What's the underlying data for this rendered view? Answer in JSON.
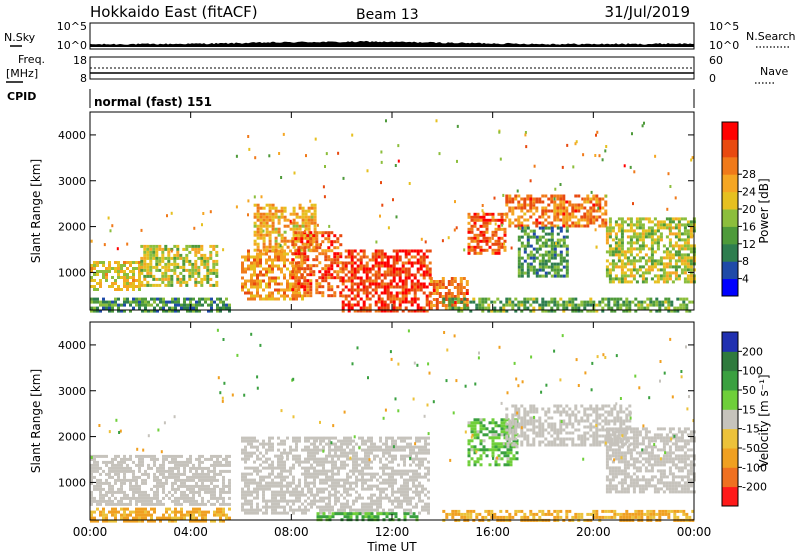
{
  "header": {
    "station": "Hokkaido East (fitACF)",
    "beam": "Beam 13",
    "date": "31/Jul/2019"
  },
  "noise_panel": {
    "left_label": "N.Sky",
    "left_ticks": [
      "10^5",
      "10^0"
    ],
    "right_label": "N.Search",
    "right_ticks": [
      "10^5",
      "10^0"
    ],
    "envelope": [
      [
        0,
        1.0
      ],
      [
        3,
        1.3
      ],
      [
        5,
        1.8
      ],
      [
        6,
        2.2
      ],
      [
        7,
        2.8
      ],
      [
        8,
        3.1
      ],
      [
        9,
        3.4
      ],
      [
        10,
        3.3
      ],
      [
        11,
        3.8
      ],
      [
        12,
        3.4
      ],
      [
        13,
        3.0
      ],
      [
        14,
        2.6
      ],
      [
        15,
        2.3
      ],
      [
        16,
        1.9
      ],
      [
        17,
        1.6
      ],
      [
        18,
        1.3
      ],
      [
        20,
        1.2
      ],
      [
        21,
        1.4
      ],
      [
        22,
        1.2
      ],
      [
        23,
        1.8
      ],
      [
        24,
        1.5
      ]
    ]
  },
  "freq_panel": {
    "left_label_top": "Freq.",
    "left_label_bottom": "[MHz]",
    "left_ticks": [
      "18",
      "8"
    ],
    "right_label": "Nave",
    "right_ticks": [
      "60",
      "0"
    ]
  },
  "cpid_panel": {
    "label": "CPID",
    "value": "normal (fast) 151"
  },
  "x_axis": {
    "label": "Time UT",
    "ticks": [
      "00:00",
      "04:00",
      "08:00",
      "12:00",
      "16:00",
      "20:00",
      "00:00"
    ]
  },
  "colors": {
    "power_scale": [
      "#0000ff",
      "#1f4aa8",
      "#2e7d4f",
      "#4e9a3a",
      "#8cbe3c",
      "#e6c020",
      "#f5a623",
      "#f07a1a",
      "#e84a10",
      "#ff0000"
    ],
    "velocity_scale": [
      "#2030b0",
      "#2f7a3d",
      "#3aa040",
      "#6fcf3a",
      "#c6c3bc",
      "#ecc23a",
      "#f0a020",
      "#ef7020",
      "#ff1a1a"
    ]
  },
  "chart_data": [
    {
      "type": "heatmap",
      "title": "",
      "xlabel": "Time UT",
      "ylabel": "Slant Range [km]",
      "xlim": [
        0,
        24
      ],
      "ylim": [
        180,
        4500
      ],
      "yticks": [
        1000,
        2000,
        3000,
        4000
      ],
      "colorbar": {
        "label": "Power [dB]",
        "ticks": [
          "4",
          "8",
          "12",
          "16",
          "20",
          "24",
          "28"
        ],
        "range": [
          0,
          32
        ]
      },
      "regions": [
        {
          "t": [
            0.0,
            2.0
          ],
          "r": [
            600,
            1250
          ],
          "level": 18
        },
        {
          "t": [
            2.0,
            5.0
          ],
          "r": [
            700,
            1600
          ],
          "level": 16
        },
        {
          "t": [
            0.0,
            5.5
          ],
          "r": [
            180,
            450
          ],
          "level": 10
        },
        {
          "t": [
            6.0,
            8.5
          ],
          "r": [
            400,
            1500
          ],
          "level": 22
        },
        {
          "t": [
            6.5,
            9.0
          ],
          "r": [
            1500,
            2500
          ],
          "level": 20
        },
        {
          "t": [
            8.0,
            10.0
          ],
          "r": [
            500,
            1900
          ],
          "level": 26
        },
        {
          "t": [
            10.0,
            13.5
          ],
          "r": [
            180,
            1500
          ],
          "level": 28
        },
        {
          "t": [
            13.5,
            15.0
          ],
          "r": [
            200,
            900
          ],
          "level": 24
        },
        {
          "t": [
            15.0,
            16.5
          ],
          "r": [
            1400,
            2300
          ],
          "level": 26
        },
        {
          "t": [
            16.5,
            20.5
          ],
          "r": [
            2000,
            2700
          ],
          "level": 24
        },
        {
          "t": [
            17.0,
            19.0
          ],
          "r": [
            900,
            2000
          ],
          "level": 10
        },
        {
          "t": [
            20.5,
            24.0
          ],
          "r": [
            800,
            2200
          ],
          "level": 16
        },
        {
          "t": [
            14.0,
            24.0
          ],
          "r": [
            180,
            450
          ],
          "level": 12
        }
      ]
    },
    {
      "type": "heatmap",
      "title": "",
      "xlabel": "Time UT",
      "ylabel": "Slant Range [km]",
      "xlim": [
        0,
        24
      ],
      "ylim": [
        180,
        4500
      ],
      "yticks": [
        1000,
        2000,
        3000,
        4000
      ],
      "colorbar": {
        "label": "Velocity [m s⁻¹]",
        "ticks": [
          "-200",
          "-100",
          "-50",
          "-15",
          "15",
          "50",
          "100",
          "200"
        ],
        "range": [
          -250,
          250
        ]
      },
      "regions": [
        {
          "t": [
            0.0,
            5.5
          ],
          "r": [
            500,
            1600
          ],
          "level": 0
        },
        {
          "t": [
            0.0,
            5.5
          ],
          "r": [
            180,
            450
          ],
          "level": -60
        },
        {
          "t": [
            6.0,
            13.5
          ],
          "r": [
            300,
            2000
          ],
          "level": 0
        },
        {
          "t": [
            9.0,
            13.0
          ],
          "r": [
            180,
            350
          ],
          "level": 60
        },
        {
          "t": [
            15.0,
            17.0
          ],
          "r": [
            1400,
            2400
          ],
          "level": 40
        },
        {
          "t": [
            16.5,
            21.5
          ],
          "r": [
            1800,
            2700
          ],
          "level": 0
        },
        {
          "t": [
            20.5,
            24.0
          ],
          "r": [
            800,
            2200
          ],
          "level": 0
        },
        {
          "t": [
            14.0,
            24.0
          ],
          "r": [
            180,
            400
          ],
          "level": -60
        }
      ]
    }
  ]
}
